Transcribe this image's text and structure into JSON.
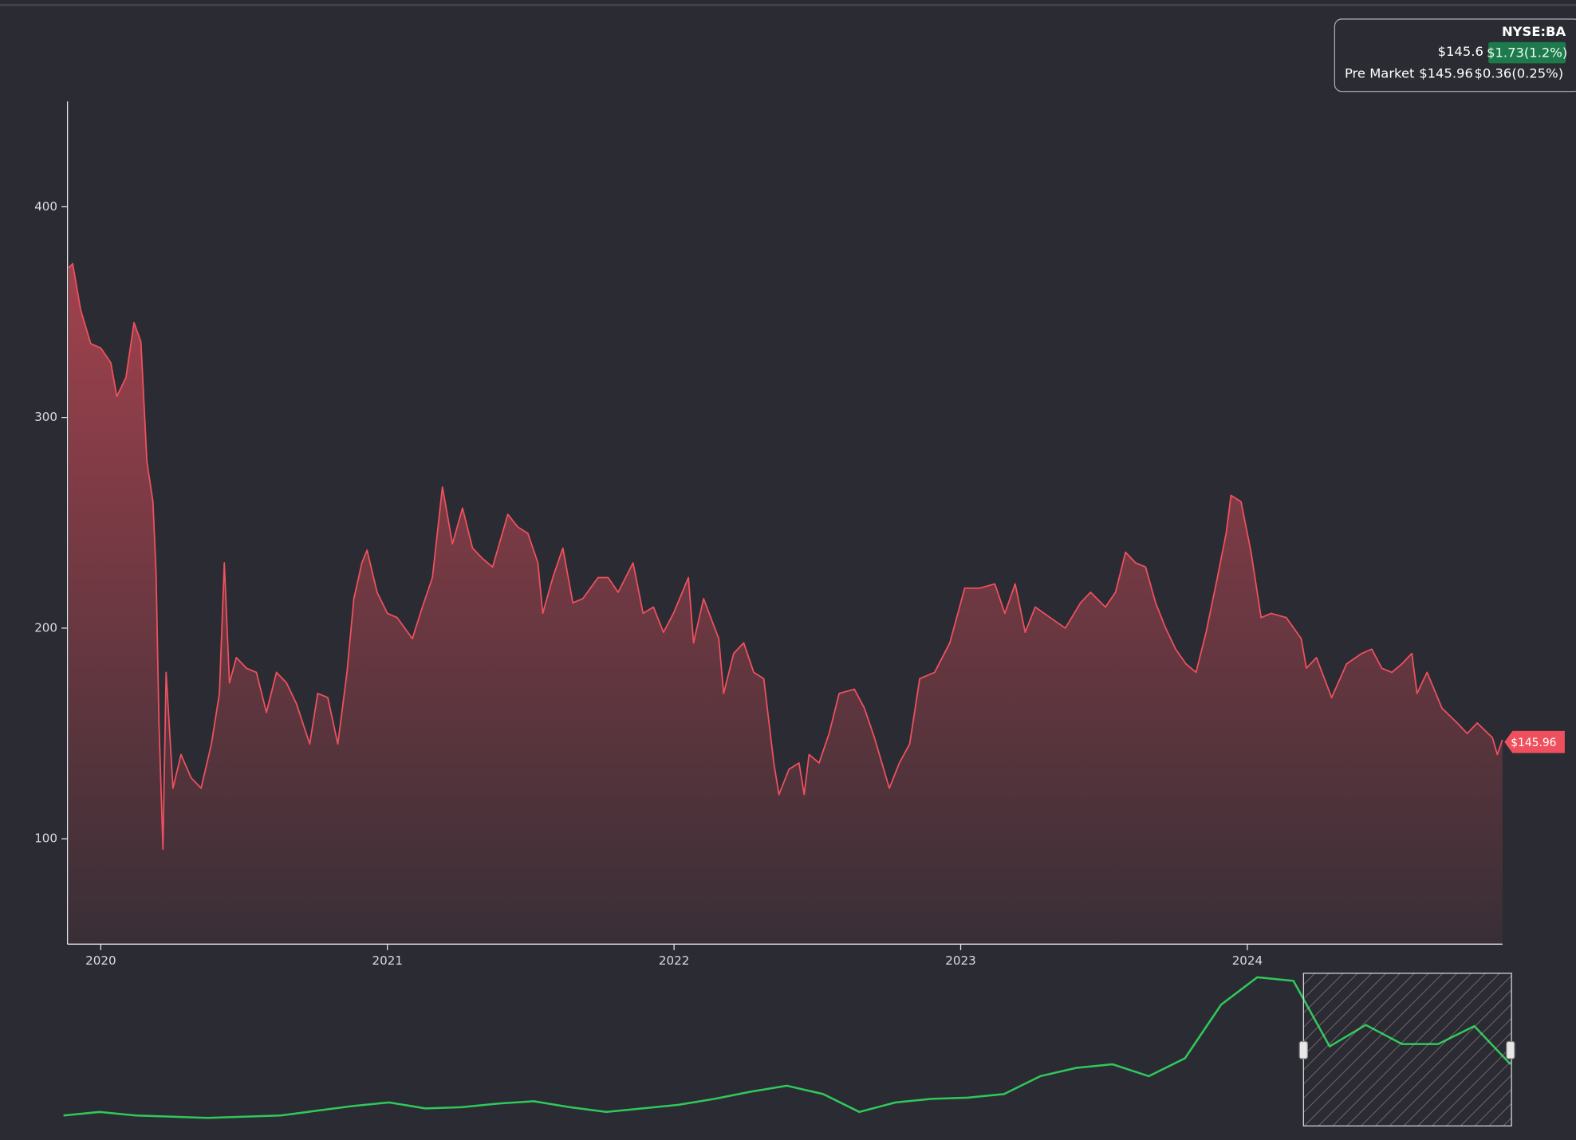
{
  "quote": {
    "symbol": "NYSE:BA",
    "price": "$145.6",
    "change": "$1.73(1.2%)",
    "premarket_label": "Pre Market",
    "premarket_price": "$145.96",
    "premarket_change": "$0.36(0.25%)"
  },
  "chart_data": [
    {
      "type": "area",
      "color": "#f0505e",
      "x": [
        2019.888,
        2019.902,
        2019.93,
        2019.965,
        2020.0,
        2020.035,
        2020.056,
        2020.088,
        2020.116,
        2020.14,
        2020.161,
        2020.182,
        2020.193,
        2020.203,
        2020.217,
        2020.228,
        2020.252,
        2020.28,
        2020.315,
        2020.35,
        2020.386,
        2020.414,
        2020.431,
        2020.449,
        2020.473,
        2020.508,
        2020.543,
        2020.578,
        2020.613,
        2020.648,
        2020.683,
        2020.729,
        2020.757,
        2020.792,
        2020.827,
        2020.859,
        2020.883,
        2020.911,
        2020.929,
        2020.964,
        2021.0,
        2021.034,
        2021.087,
        2021.122,
        2021.157,
        2021.192,
        2021.227,
        2021.262,
        2021.297,
        2021.332,
        2021.367,
        2021.42,
        2021.455,
        2021.49,
        2021.525,
        2021.542,
        2021.577,
        2021.612,
        2021.647,
        2021.682,
        2021.735,
        2021.77,
        2021.805,
        2021.857,
        2021.892,
        2021.928,
        2021.963,
        2021.998,
        2022.05,
        2022.068,
        2022.103,
        2022.156,
        2022.173,
        2022.208,
        2022.243,
        2022.278,
        2022.313,
        2022.348,
        2022.366,
        2022.401,
        2022.436,
        2022.454,
        2022.471,
        2022.506,
        2022.541,
        2022.576,
        2022.629,
        2022.664,
        2022.699,
        2022.751,
        2022.786,
        2022.822,
        2022.857,
        2022.909,
        2022.962,
        2023.014,
        2023.067,
        2023.119,
        2023.154,
        2023.19,
        2023.225,
        2023.26,
        2023.312,
        2023.365,
        2023.418,
        2023.453,
        2023.505,
        2023.54,
        2023.575,
        2023.61,
        2023.645,
        2023.68,
        2023.715,
        2023.75,
        2023.786,
        2023.821,
        2023.856,
        2023.891,
        2023.926,
        2023.943,
        2023.978,
        2024.013,
        2024.048,
        2024.083,
        2024.136,
        2024.188,
        2024.206,
        2024.241,
        2024.294,
        2024.346,
        2024.399,
        2024.434,
        2024.469,
        2024.504,
        2024.539,
        2024.574,
        2024.592,
        2024.627,
        2024.679,
        2024.732,
        2024.767,
        2024.802,
        2024.855,
        2024.872,
        2024.89
      ],
      "values": [
        371,
        373,
        351,
        335,
        333,
        326,
        310,
        319,
        345,
        336,
        279,
        260,
        226,
        155,
        95,
        179,
        124,
        140,
        129,
        124,
        145,
        169,
        231,
        174,
        186,
        181,
        179,
        160,
        179,
        174,
        164,
        145,
        169,
        167,
        145,
        179,
        214,
        231,
        237,
        217,
        207,
        205,
        195,
        210,
        224,
        267,
        240,
        257,
        238,
        233,
        229,
        254,
        248,
        245,
        231,
        207,
        224,
        238,
        212,
        214,
        224,
        224,
        217,
        231,
        207,
        210,
        198,
        207,
        224,
        193,
        214,
        195,
        169,
        188,
        193,
        179,
        176,
        136,
        121,
        133,
        136,
        121,
        140,
        136,
        150,
        169,
        171,
        162,
        148,
        124,
        136,
        145,
        176,
        179,
        193,
        219,
        219,
        221,
        207,
        221,
        198,
        210,
        205,
        200,
        212,
        217,
        210,
        217,
        236,
        231,
        229,
        212,
        200,
        190,
        183,
        179,
        198,
        221,
        245,
        263,
        260,
        236,
        205,
        207,
        205,
        195,
        181,
        186,
        167,
        183,
        188,
        190,
        181,
        179,
        183,
        188,
        169,
        179,
        162,
        155,
        150,
        155,
        148,
        140,
        147
      ],
      "xlim": [
        2019.884,
        2024.89
      ],
      "ylim": [
        50,
        450
      ],
      "xticks": [
        2020,
        2021,
        2022,
        2023,
        2024
      ],
      "yticks": [
        100,
        200,
        300,
        400
      ],
      "last_price": {
        "value": 145.96,
        "label": "$145.96"
      }
    },
    {
      "type": "line",
      "color": "#2fc95b",
      "values": [
        12,
        15,
        12,
        11,
        10,
        11,
        12,
        16,
        20,
        23,
        18,
        19,
        22,
        24,
        19,
        15,
        18,
        21,
        26,
        32,
        37,
        30,
        15,
        23,
        26,
        27,
        30,
        45,
        52,
        55,
        45,
        60,
        105,
        128,
        125,
        70,
        88,
        72,
        72,
        87,
        55
      ]
    }
  ]
}
